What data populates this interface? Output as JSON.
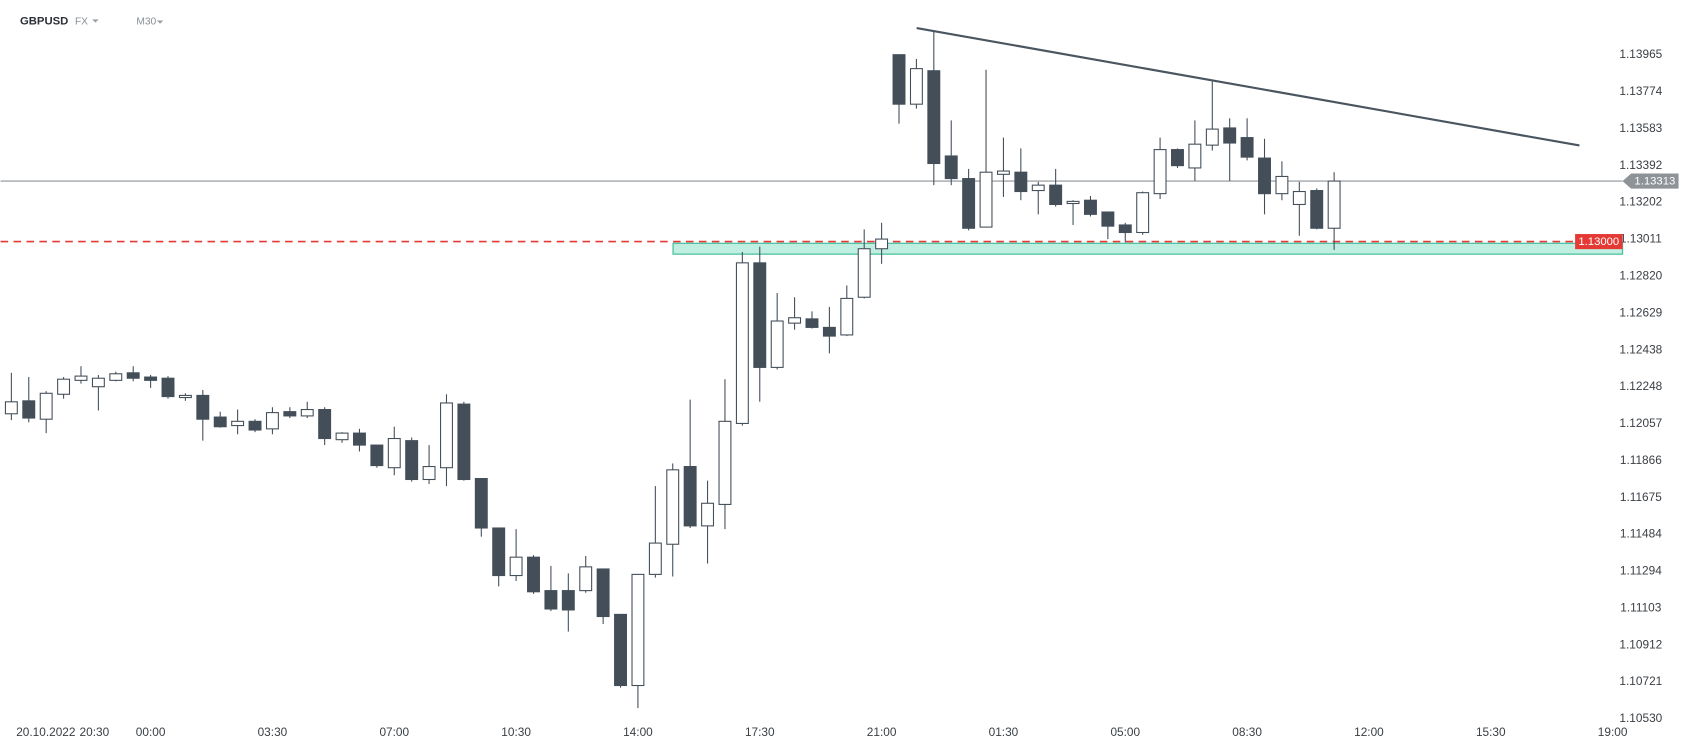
{
  "header": {
    "symbol": "GBPUSD",
    "market": "FX",
    "timeframe": "M30"
  },
  "chart_data": {
    "type": "candlestick",
    "date_label": "20.10.2022",
    "categories": [
      null,
      "20:30",
      null,
      null,
      null,
      null,
      null,
      null,
      "00:00",
      null,
      null,
      null,
      null,
      null,
      null,
      "03:30",
      null,
      null,
      null,
      null,
      null,
      null,
      "07:00",
      null,
      null,
      null,
      null,
      null,
      null,
      "10:30",
      null,
      null,
      null,
      null,
      null,
      null,
      "14:00",
      null,
      null,
      null,
      null,
      null,
      null,
      "17:30",
      null,
      null,
      null,
      null,
      null,
      null,
      "21:00",
      null,
      null,
      null,
      null,
      null,
      null,
      "01:30",
      null,
      null,
      null,
      null,
      null,
      null,
      "05:00",
      null,
      null,
      null,
      null,
      null,
      null,
      "08:30",
      null,
      null,
      null,
      null,
      null,
      null,
      "12:00",
      null,
      null,
      null,
      null,
      null,
      null,
      "15:30",
      null,
      null,
      null,
      null,
      null,
      null,
      "19:00"
    ],
    "open": [
      1.12109,
      1.12176,
      1.12081,
      1.1221,
      1.12282,
      1.12249,
      1.12282,
      1.12321,
      1.12299,
      1.12293,
      1.12193,
      1.12204,
      1.12092,
      1.12048,
      1.1207,
      1.12031,
      1.1212,
      1.12098,
      1.12131,
      1.11975,
      1.12009,
      1.11947,
      1.1183,
      1.1197,
      1.11769,
      1.1183,
      1.12159,
      1.11774,
      1.11518,
      1.11272,
      1.11367,
      1.11194,
      1.11194,
      1.11194,
      1.11306,
      1.11071,
      1.10703,
      1.11278,
      1.11434,
      1.11836,
      1.11529,
      1.1164,
      1.12059,
      1.1289,
      1.12349,
      1.12578,
      1.126,
      1.12556,
      1.12517,
      1.12712,
      1.12963,
      1.13967,
      1.13711,
      1.13884,
      1.13443,
      1.13326,
      1.13075,
      1.13348,
      1.13359,
      1.13264,
      1.13292,
      1.13197,
      1.13214,
      1.13153,
      1.13086,
      1.13047,
      1.13248,
      1.13476,
      1.13381,
      1.13499,
      1.13588,
      1.13538,
      1.13432,
      1.13248,
      1.13192,
      1.13264,
      1.13069,
      null,
      null,
      null,
      null,
      null,
      null,
      null,
      null,
      null,
      null,
      null,
      null,
      null,
      null,
      null,
      null
    ],
    "high": [
      1.12321,
      1.12299,
      1.12226,
      1.12299,
      1.12355,
      1.1231,
      1.12327,
      1.12355,
      1.1231,
      1.12304,
      1.12215,
      1.12232,
      1.1212,
      1.12131,
      1.12081,
      1.12143,
      1.12143,
      1.12171,
      1.12143,
      1.12014,
      1.12031,
      1.11947,
      1.12042,
      1.11986,
      1.11947,
      1.1221,
      1.12171,
      1.11774,
      1.11518,
      1.11512,
      1.11378,
      1.11322,
      1.11283,
      1.11373,
      1.11306,
      1.11071,
      1.11278,
      1.11735,
      1.11852,
      1.12182,
      1.11763,
      1.12288,
      1.12946,
      1.12974,
      1.12734,
      1.12712,
      1.12639,
      1.12662,
      1.12773,
      1.13063,
      1.13097,
      1.13967,
      1.13945,
      1.1409,
      1.13627,
      1.13376,
      1.13889,
      1.13538,
      1.13482,
      1.13309,
      1.13376,
      1.13214,
      1.13236,
      1.13153,
      1.13097,
      1.13259,
      1.13538,
      1.13482,
      1.13627,
      1.13828,
      1.13638,
      1.13638,
      1.13532,
      1.13415,
      1.13309,
      1.13275,
      1.13359,
      null,
      null,
      null,
      null,
      null,
      null,
      null,
      null,
      null,
      null,
      null,
      null,
      null,
      null,
      null,
      null
    ],
    "low": [
      1.12076,
      1.12065,
      1.12009,
      1.12187,
      1.12265,
      1.12126,
      1.12277,
      1.12277,
      1.12243,
      1.12187,
      1.12176,
      1.1197,
      1.12037,
      1.12003,
      1.12014,
      1.12003,
      1.12087,
      1.12087,
      1.11947,
      1.11959,
      1.11914,
      1.1183,
      1.11791,
      1.11758,
      1.11746,
      1.11735,
      1.11763,
      1.11473,
      1.11216,
      1.11244,
      1.11177,
      1.11088,
      1.10982,
      1.11183,
      1.11021,
      1.10692,
      1.10586,
      1.11261,
      1.11267,
      1.11518,
      1.11334,
      1.11512,
      1.12048,
      1.12171,
      1.12338,
      1.12544,
      1.1255,
      1.12422,
      1.12511,
      1.12706,
      1.12885,
      1.1361,
      1.13688,
      1.13292,
      1.13292,
      1.13058,
      1.13075,
      1.13231,
      1.13214,
      1.13141,
      1.13181,
      1.13086,
      1.1313,
      1.13013,
      1.12996,
      1.13035,
      1.1322,
      1.13381,
      1.13314,
      1.13471,
      1.13314,
      1.1342,
      1.13141,
      1.13214,
      1.1303,
      1.13063,
      1.12957,
      null,
      null,
      null,
      null,
      null,
      null,
      null,
      null,
      null,
      null,
      null,
      null,
      null,
      null,
      null,
      null
    ],
    "close": [
      1.12171,
      1.12087,
      1.12215,
      1.12288,
      1.12304,
      1.12293,
      1.12316,
      1.12293,
      1.12282,
      1.12198,
      1.12204,
      1.12081,
      1.12042,
      1.1207,
      1.12025,
      1.12115,
      1.12098,
      1.12131,
      1.11981,
      1.12009,
      1.11947,
      1.11841,
      1.11981,
      1.11769,
      1.11836,
      1.12165,
      1.11769,
      1.11518,
      1.11272,
      1.11367,
      1.11188,
      1.11099,
      1.11094,
      1.11317,
      1.1106,
      1.10703,
      1.11278,
      1.1144,
      1.11819,
      1.11529,
      1.11646,
      1.1207,
      1.1289,
      1.12349,
      1.12589,
      1.12606,
      1.12556,
      1.12511,
      1.12706,
      1.12963,
      1.13013,
      1.13711,
      1.13895,
      1.13404,
      1.13326,
      1.13069,
      1.13359,
      1.13365,
      1.13259,
      1.13292,
      1.13192,
      1.13208,
      1.13141,
      1.1308,
      1.13047,
      1.13253,
      1.13476,
      1.13393,
      1.13504,
      1.13582,
      1.1351,
      1.13437,
      1.13248,
      1.13337,
      1.13259,
      1.13069,
      1.13313,
      null,
      null,
      null,
      null,
      null,
      null,
      null,
      null,
      null,
      null,
      null,
      null,
      null,
      null,
      null,
      null
    ],
    "up_color": "#ffffff",
    "down_color": "#434e59",
    "ylim": [
      1.105,
      1.1425
    ],
    "yticks": [
      {
        "value": 1.1053,
        "label": "1.10530"
      },
      1.10721,
      1.10912,
      1.11103,
      1.11294,
      1.11484,
      1.11675,
      1.11866,
      1.12057,
      1.12248,
      1.12438,
      1.12629,
      {
        "value": 1.1282,
        "label": "1.12820"
      },
      1.13011,
      1.13202,
      1.13392,
      1.13583,
      1.13774,
      1.13965
    ],
    "grid": false,
    "price_line": {
      "value": 1.13313,
      "color": "#8e9398"
    },
    "level": {
      "value": 1.13,
      "label": "1.13000",
      "color": "#e53935"
    },
    "zone": {
      "from": 1.12935,
      "to": 1.12991,
      "color": "#b5ebdc"
    }
  }
}
